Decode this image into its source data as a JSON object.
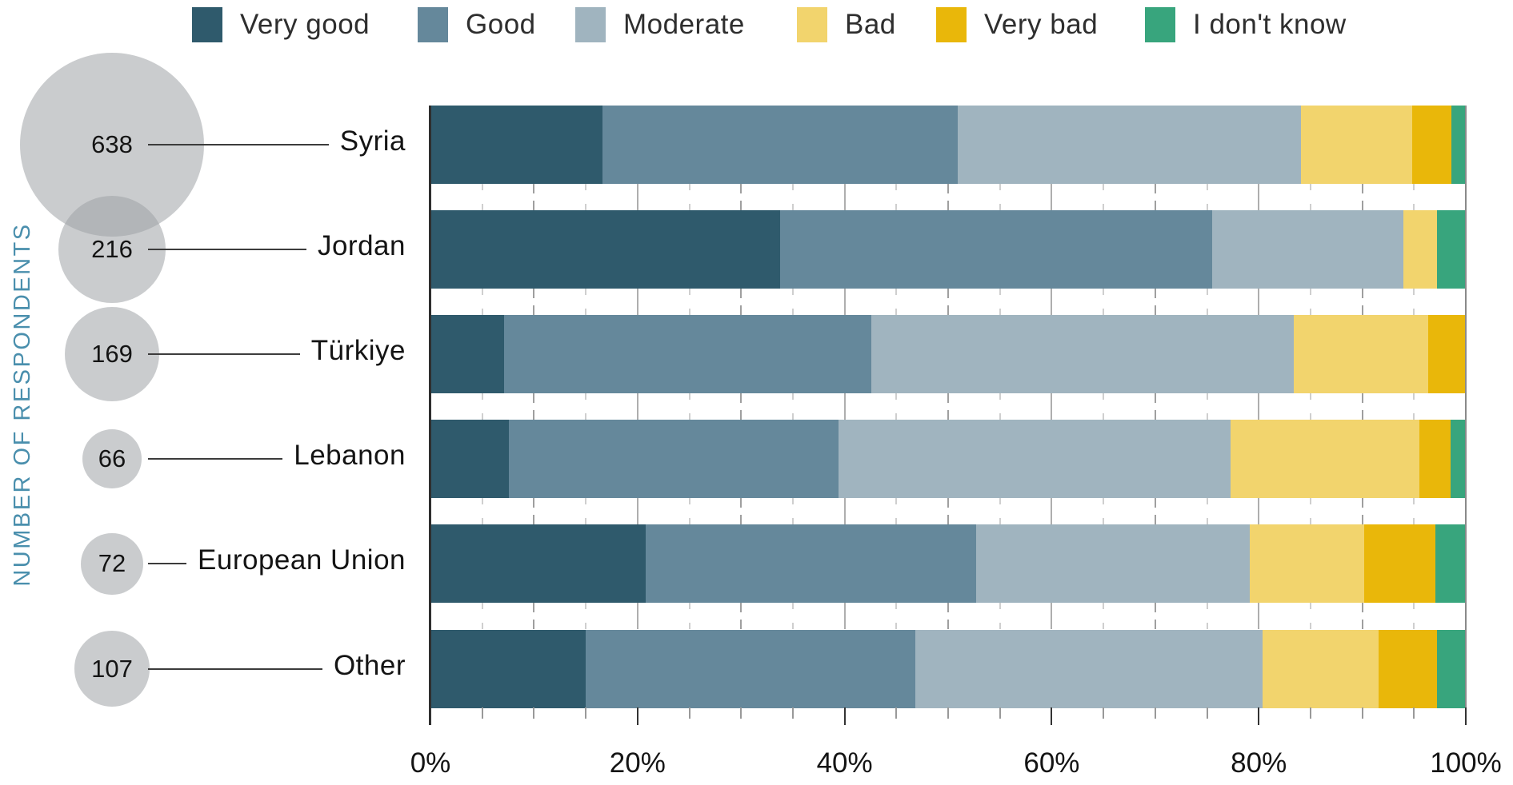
{
  "y_axis_label": "NUMBER OF RESPONDENTS",
  "legend": {
    "items": [
      {
        "label": "Very good",
        "color": "#2F5A6C"
      },
      {
        "label": "Good",
        "color": "#65889B"
      },
      {
        "label": "Moderate",
        "color": "#A0B4BF"
      },
      {
        "label": "Bad",
        "color": "#F2D46D"
      },
      {
        "label": "Very bad",
        "color": "#E9B70A"
      },
      {
        "label": "I don't know",
        "color": "#38A57D"
      }
    ]
  },
  "chart_data": {
    "type": "bar",
    "stacked": true,
    "orientation": "horizontal",
    "title": "",
    "xlabel": "",
    "ylabel": "NUMBER OF RESPONDENTS",
    "categories": [
      "Syria",
      "Jordan",
      "Türkiye",
      "Lebanon",
      "European Union",
      "Other"
    ],
    "respondents": [
      638,
      216,
      169,
      66,
      72,
      107
    ],
    "series": [
      {
        "name": "Very good",
        "color": "#2F5A6C",
        "values": [
          16.6,
          33.8,
          7.1,
          7.6,
          20.8,
          15.0
        ]
      },
      {
        "name": "Good",
        "color": "#65889B",
        "values": [
          34.3,
          41.7,
          35.5,
          31.8,
          31.9,
          31.8
        ]
      },
      {
        "name": "Moderate",
        "color": "#A0B4BF",
        "values": [
          33.2,
          18.5,
          40.8,
          37.9,
          26.4,
          33.6
        ]
      },
      {
        "name": "Bad",
        "color": "#F2D46D",
        "values": [
          10.7,
          3.2,
          13.0,
          18.2,
          11.1,
          11.2
        ]
      },
      {
        "name": "Very bad",
        "color": "#E9B70A",
        "values": [
          3.8,
          0,
          3.6,
          3.0,
          6.9,
          5.6
        ]
      },
      {
        "name": "I don't know",
        "color": "#38A57D",
        "values": [
          1.4,
          2.8,
          0,
          1.5,
          2.9,
          2.8
        ]
      }
    ],
    "x_ticks": [
      "0%",
      "20%",
      "40%",
      "60%",
      "80%",
      "100%"
    ],
    "xlim": [
      0,
      100
    ],
    "x_major_tick_step": 20,
    "x_minor_tick_step": 5,
    "legend_position": "top",
    "grid": "between-bars"
  }
}
